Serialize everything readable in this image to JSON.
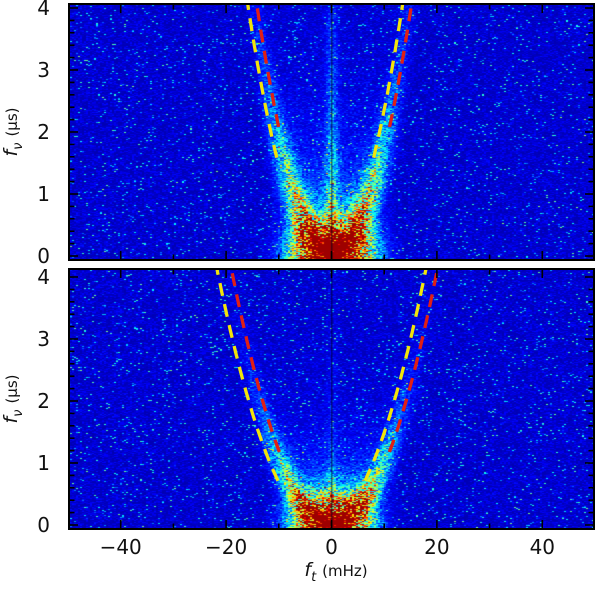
{
  "chart_data": {
    "type": "heatmap",
    "description": "Two vertically stacked pulsar-scintillation secondary spectra. Power (jet colormap on dark-blue noise background) is concentrated in a bright red core at the origin with yellow/green arms rising along parabolic scintillation arcs; dashed yellow and red parabolic arc fits are overplotted on each panel. A thin dark vertical line marks f_t = 0.",
    "colormap": "jet",
    "background_color": "#06069a",
    "x_axis": {
      "label": "f_t (mHz)",
      "label_base": "f",
      "label_sub": "t",
      "label_unit": "(mHz)",
      "range": [
        -50,
        50
      ],
      "major_tick_values": [
        -40,
        -20,
        0,
        20,
        40
      ],
      "major_tick_labels": [
        "−40",
        "−20",
        "0",
        "20",
        "40"
      ],
      "minor_tick_step_mHz": 10
    },
    "y_axis": {
      "label": "f_ν (μs)",
      "label_base": "f",
      "label_sub": "ν",
      "label_unit": "(μs)",
      "range": [
        0,
        4.1
      ],
      "major_tick_values": [
        0,
        1,
        2,
        3,
        4
      ],
      "major_tick_labels": [
        "0",
        "1",
        "2",
        "3",
        "4"
      ],
      "minor_tick_step_us": 0.2
    },
    "panels": [
      {
        "id": "upper",
        "seed": 20240,
        "arcs": [
          {
            "name": "yellow-arc",
            "color": "#f2e40a",
            "curvature_us_per_mHz2": 0.0188,
            "vertex_offset_mHz": -1.2,
            "min_fnu": 1.45
          },
          {
            "name": "red-arc",
            "color": "#e01f15",
            "curvature_us_per_mHz2": 0.0188,
            "vertex_offset_mHz": 0.5,
            "min_fnu": 1.95
          }
        ],
        "emission": {
          "blob": {
            "amp": 1.05,
            "height": 0.5,
            "halfwidth": 8.2
          },
          "arms": {
            "amp": 0.95,
            "curvature": 0.0188,
            "sigma0": 2.6,
            "tau": 1.5
          },
          "fill": {
            "amp": 0.5,
            "tau": 0.85
          },
          "stripe": {
            "amp": 0.4,
            "halfwidth": 1.2,
            "tau": 2.6
          }
        }
      },
      {
        "id": "lower",
        "seed": 77031,
        "arcs": [
          {
            "name": "yellow-arc",
            "color": "#f2e40a",
            "curvature_us_per_mHz2": 0.0105,
            "vertex_offset_mHz": -1.9,
            "min_fnu": 0.7
          },
          {
            "name": "red-arc",
            "color": "#e01f15",
            "curvature_us_per_mHz2": 0.0108,
            "vertex_offset_mHz": 0.55,
            "min_fnu": 1.05
          }
        ],
        "emission": {
          "blob": {
            "amp": 1.05,
            "height": 0.45,
            "halfwidth": 7.8
          },
          "arms": {
            "amp": 0.95,
            "curvature": 0.0106,
            "sigma0": 2.4,
            "tau": 0.95
          },
          "fill": {
            "amp": 0.45,
            "tau": 0.6
          },
          "stripe": {
            "amp": 0.16,
            "halfwidth": 1.1,
            "tau": 1.6
          }
        }
      }
    ]
  }
}
